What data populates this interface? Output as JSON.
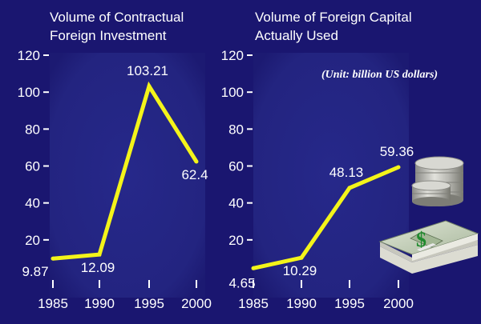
{
  "colors": {
    "background": "#1a1670",
    "plot_background": "#24257f",
    "line": "#f4f41a",
    "text": "#ffffff"
  },
  "unit_note": "(Unit: billion US dollars)",
  "icons": [
    "coin-stack-icon",
    "dollar-bundle-icon"
  ],
  "chart_data": [
    {
      "type": "line",
      "title": "Volume of Contractual Foreign Investment",
      "title_lines": [
        "Volume of Contractual",
        "Foreign Investment"
      ],
      "x": [
        1985,
        1990,
        1995,
        2000
      ],
      "values": [
        9.87,
        12.09,
        103.21,
        62.4
      ],
      "data_labels": [
        "9.87",
        "12.09",
        "103.21",
        "62.4"
      ],
      "x_ticks": [
        "1985",
        "1990",
        "1995",
        "2000"
      ],
      "y_ticks": [
        "20",
        "40",
        "60",
        "80",
        "100",
        "120"
      ],
      "ylim": [
        0,
        120
      ],
      "xlabel": "",
      "ylabel": "",
      "grid": false
    },
    {
      "type": "line",
      "title": "Volume of Foreign Capital Actually Used",
      "title_lines": [
        "Volume of Foreign Capital",
        "Actually Used"
      ],
      "x": [
        1985,
        1990,
        1995,
        2000
      ],
      "values": [
        4.65,
        10.29,
        48.13,
        59.36
      ],
      "data_labels": [
        "4.65",
        "10.29",
        "48.13",
        "59.36"
      ],
      "x_ticks": [
        "1985",
        "1990",
        "1995",
        "2000"
      ],
      "y_ticks": [
        "20",
        "40",
        "60",
        "80",
        "100",
        "120"
      ],
      "ylim": [
        0,
        120
      ],
      "xlabel": "",
      "ylabel": "",
      "grid": false
    }
  ]
}
